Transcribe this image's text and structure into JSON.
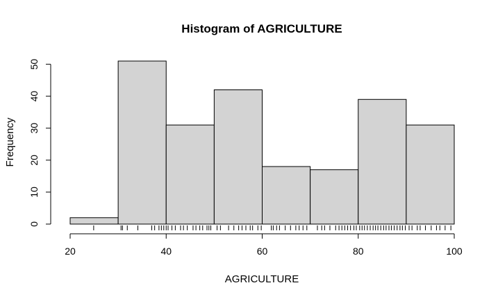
{
  "chart_data": {
    "type": "bar",
    "title": "Histogram of AGRICULTURE",
    "xlabel": "AGRICULTURE",
    "ylabel": "Frequency",
    "bins": [
      {
        "from": 20,
        "to": 30,
        "count": 2
      },
      {
        "from": 30,
        "to": 40,
        "count": 51
      },
      {
        "from": 40,
        "to": 50,
        "count": 31
      },
      {
        "from": 50,
        "to": 60,
        "count": 42
      },
      {
        "from": 60,
        "to": 70,
        "count": 18
      },
      {
        "from": 70,
        "to": 80,
        "count": 17
      },
      {
        "from": 80,
        "to": 90,
        "count": 39
      },
      {
        "from": 90,
        "to": 100,
        "count": 31
      }
    ],
    "xticks": [
      20,
      40,
      60,
      80,
      100
    ],
    "yticks": [
      0,
      10,
      20,
      30,
      40,
      50
    ],
    "xlim": [
      20,
      100
    ],
    "ylim": [
      0,
      51
    ],
    "grid": false,
    "colors": {
      "bar_fill": "#d3d3d3",
      "bar_stroke": "#000000"
    },
    "rug": [
      24.9,
      30.6,
      30.9,
      31.9,
      34.1,
      37.0,
      37.6,
      38.5,
      39.0,
      39.5,
      40.0,
      40.4,
      41.2,
      41.9,
      43.0,
      43.6,
      44.4,
      45.6,
      46.2,
      47.0,
      47.6,
      48.5,
      48.9,
      49.3,
      50.6,
      51.3,
      53.0,
      54.1,
      55.1,
      55.8,
      56.6,
      57.5,
      58.0,
      59.1,
      59.8,
      61.9,
      62.3,
      63.0,
      63.6,
      64.8,
      65.9,
      67.0,
      67.7,
      68.5,
      69.3,
      71.5,
      72.4,
      73.0,
      74.1,
      75.3,
      76.0,
      76.6,
      77.2,
      77.8,
      78.4,
      79.1,
      79.6,
      80.3,
      80.8,
      81.3,
      81.9,
      82.5,
      83.1,
      83.6,
      84.1,
      84.7,
      85.3,
      85.8,
      86.4,
      86.9,
      87.5,
      88.1,
      88.7,
      89.2,
      89.8,
      90.6,
      91.2,
      92.3,
      92.9,
      94.0,
      95.2,
      96.3,
      97.0,
      98.1,
      99.3
    ]
  }
}
